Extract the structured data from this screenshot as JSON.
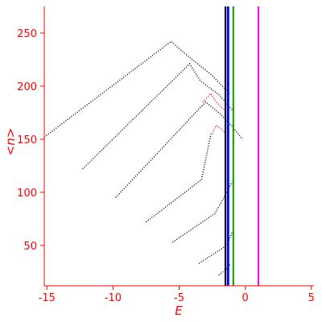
{
  "chart_data": {
    "type": "scatter",
    "xlabel": "E",
    "ylabel": "<n>",
    "xlim": [
      -15.2,
      5.2
    ],
    "ylim": [
      12,
      275
    ],
    "xticks": [
      -15,
      -10,
      -5,
      0,
      5
    ],
    "yticks": [
      50,
      100,
      150,
      200,
      250
    ],
    "grid": false,
    "colors": {
      "axis": "#ff0000",
      "ground_line": "#000000",
      "excited_line": "#ff0000",
      "scatter": "#000000",
      "vline_black": "#000000",
      "vline_blue": "#0000ff",
      "vline_green": "#00a000",
      "vline_magenta": "#ff00ff"
    },
    "vertical_lines": [
      {
        "x": -1.5,
        "color": "#000000"
      },
      {
        "x": -1.3,
        "color": "#0000ff"
      },
      {
        "x": -0.9,
        "color": "#00a000"
      },
      {
        "x": 1.0,
        "color": "#ff00ff"
      }
    ],
    "series": [
      {
        "color": "#000000",
        "points": [
          [
            -15.2,
            152
          ],
          [
            -5.6,
            242
          ],
          [
            -4.5,
            230
          ],
          [
            -2.5,
            210
          ],
          [
            -1.2,
            193
          ]
        ]
      },
      {
        "color": "#000000",
        "points": [
          [
            -12.3,
            122
          ],
          [
            -4.2,
            221
          ],
          [
            -3.4,
            205
          ],
          [
            -2.0,
            192
          ],
          [
            -0.8,
            175
          ]
        ]
      },
      {
        "color": "#000000",
        "points": [
          [
            -9.8,
            95
          ],
          [
            -3.0,
            185
          ],
          [
            -2.0,
            175
          ],
          [
            -1.2,
            165
          ],
          [
            -0.2,
            150
          ]
        ]
      },
      {
        "color": "#ff0000",
        "points": [
          [
            -3.2,
            185
          ],
          [
            -2.6,
            193
          ],
          [
            -2.2,
            185
          ],
          [
            -1.6,
            178
          ]
        ]
      },
      {
        "color": "#000000",
        "points": [
          [
            -7.5,
            72
          ],
          [
            -3.3,
            112
          ],
          [
            -3.0,
            130
          ],
          [
            -2.6,
            155
          ]
        ]
      },
      {
        "color": "#ff0000",
        "points": [
          [
            -2.5,
            155
          ],
          [
            -2.2,
            163
          ],
          [
            -1.8,
            160
          ],
          [
            -1.5,
            155
          ]
        ]
      },
      {
        "color": "#000000",
        "points": [
          [
            -5.5,
            53
          ],
          [
            -2.3,
            80
          ],
          [
            -1.6,
            95
          ],
          [
            -1.0,
            110
          ]
        ]
      },
      {
        "color": "#000000",
        "points": [
          [
            -3.5,
            33
          ],
          [
            -1.4,
            50
          ],
          [
            -1.0,
            62
          ]
        ]
      },
      {
        "color": "#000000",
        "points": [
          [
            -2.0,
            22
          ],
          [
            -1.4,
            28
          ],
          [
            -1.1,
            33
          ]
        ]
      }
    ]
  }
}
